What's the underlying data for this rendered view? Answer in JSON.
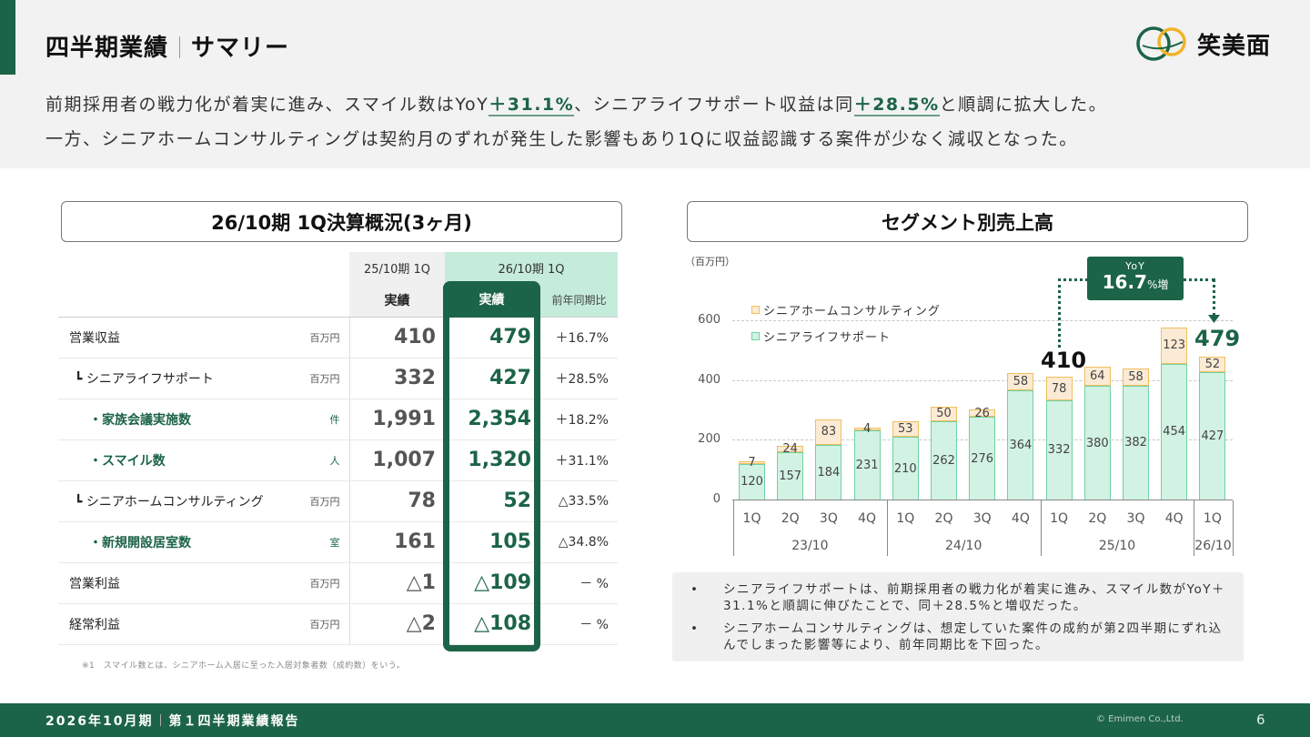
{
  "header": {
    "title_main": "四半期業績",
    "title_sub": "サマリー",
    "logo_text": "笑美面",
    "summary_line1_a": "前期採用者の戦力化が着実に進み、スマイル数はYoY",
    "summary_line1_hl1": "＋31.1%",
    "summary_line1_b": "、シニアライフサポート収益は同",
    "summary_line1_hl2": "＋28.5%",
    "summary_line1_c": "と順調に拡大した。",
    "summary_line2": "一方、シニアホームコンサルティングは契約月のずれが発生した影響もあり1Qに収益認識する案件が少なく減収となった。"
  },
  "table": {
    "title": "26/10期 1Q決算概況(3ヶ月)",
    "col_prev_period": "25/10期 1Q",
    "col_cur_period": "26/10期 1Q",
    "col_prev_actual": "実績",
    "col_cur_actual": "実績",
    "col_ratio": "前年同期比",
    "rows": [
      {
        "label": "営業収益",
        "unit": "百万円",
        "prev": "410",
        "cur": "479",
        "ratio": "＋16.7%"
      },
      {
        "label": "┗ シニアライフサポート",
        "unit": "百万円",
        "prev": "332",
        "cur": "427",
        "ratio": "＋28.5%"
      },
      {
        "label": "・家族会議実施数",
        "unit": "件",
        "prev": "1,991",
        "cur": "2,354",
        "ratio": "＋18.2%"
      },
      {
        "label": "・スマイル数",
        "unit": "人",
        "prev": "1,007",
        "cur": "1,320",
        "ratio": "＋31.1%"
      },
      {
        "label": "┗ シニアホームコンサルティング",
        "unit": "百万円",
        "prev": "78",
        "cur": "52",
        "ratio": "△33.5%"
      },
      {
        "label": "・新規開設居室数",
        "unit": "室",
        "prev": "161",
        "cur": "105",
        "ratio": "△34.8%"
      },
      {
        "label": "営業利益",
        "unit": "百万円",
        "prev": "△1",
        "cur": "△109",
        "ratio": "－ %"
      },
      {
        "label": "経常利益",
        "unit": "百万円",
        "prev": "△2",
        "cur": "△108",
        "ratio": "－ %"
      }
    ],
    "footnote": "※1　スマイル数とは、シニアホーム入居に至った入居対象者数（成約数）をいう。"
  },
  "chart_section": {
    "title": "セグメント別売上高",
    "unit": "（百万円）",
    "yoy_label": "YoY",
    "yoy_value": "16.7",
    "yoy_suffix": "%増",
    "total_prev": "410",
    "total_cur": "479",
    "notes": [
      "シニアライフサポートは、前期採用者の戦力化が着実に進み、スマイル数がYoY＋31.1%と順調に伸びたことで、同＋28.5%と増収だった。",
      "シニアホームコンサルティングは、想定していた案件の成約が第2四半期にずれ込んでしまった影響等により、前年同期比を下回った。"
    ]
  },
  "chart_data": {
    "type": "bar",
    "stacked": true,
    "title": "セグメント別売上高",
    "ylabel": "（百万円）",
    "xlabel": "",
    "ylim": [
      0,
      600
    ],
    "yticks": [
      0,
      200,
      400,
      600
    ],
    "grid": true,
    "legend_position": "top-left",
    "categories": [
      "23/10 1Q",
      "23/10 2Q",
      "23/10 3Q",
      "23/10 4Q",
      "24/10 1Q",
      "24/10 2Q",
      "24/10 3Q",
      "24/10 4Q",
      "25/10 1Q",
      "25/10 2Q",
      "25/10 3Q",
      "25/10 4Q",
      "26/10 1Q"
    ],
    "quarter_labels": [
      "1Q",
      "2Q",
      "3Q",
      "4Q",
      "1Q",
      "2Q",
      "3Q",
      "4Q",
      "1Q",
      "2Q",
      "3Q",
      "4Q",
      "1Q"
    ],
    "year_groups": [
      {
        "label": "23/10",
        "span": 4
      },
      {
        "label": "24/10",
        "span": 4
      },
      {
        "label": "25/10",
        "span": 4
      },
      {
        "label": "26/10",
        "span": 1
      }
    ],
    "series": [
      {
        "name": "シニアライフサポート",
        "color": "#d2f2e3",
        "border": "#6fd1a5",
        "values": [
          120,
          157,
          184,
          231,
          210,
          262,
          276,
          364,
          332,
          380,
          382,
          454,
          427
        ]
      },
      {
        "name": "シニアホームコンサルティング",
        "color": "#fcebd4",
        "border": "#f0bf5e",
        "values": [
          7,
          24,
          83,
          4,
          53,
          50,
          26,
          58,
          78,
          64,
          58,
          123,
          52
        ]
      }
    ],
    "annotations": [
      {
        "text": "410",
        "target": "25/10 1Q total"
      },
      {
        "text": "479",
        "target": "26/10 1Q total"
      },
      {
        "text": "YoY 16.7%増",
        "from": "25/10 1Q",
        "to": "26/10 1Q"
      }
    ]
  },
  "footer": {
    "left_a": "2026年10月期",
    "left_b": "第１四半期業績報告",
    "copyright": "© Emimen Co.,Ltd.",
    "page": "6"
  },
  "colors": {
    "brand_green": "#1c6447",
    "mint": "#c5ecdb",
    "life_support": "#d2f2e3",
    "consulting": "#fcebd4",
    "logo_yellow": "#f0b429"
  }
}
